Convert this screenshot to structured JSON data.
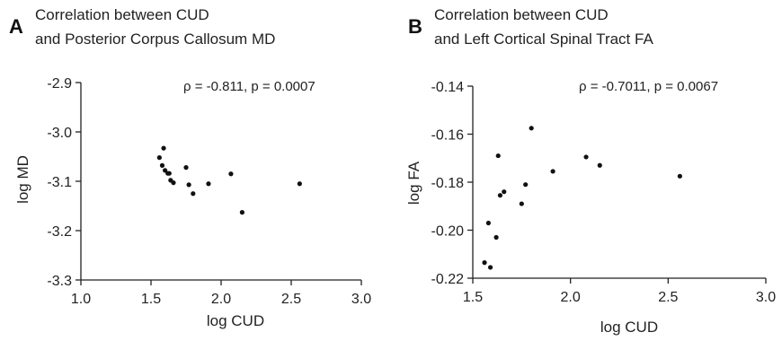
{
  "chart_data": [
    {
      "type": "scatter",
      "panel": "A",
      "title": [
        "Correlation between CUD",
        "and Posterior Corpus Callosum MD"
      ],
      "annotation": "ρ =  -0.811, p = 0.0007",
      "xlabel": "log CUD",
      "ylabel": "log MD",
      "xlim": [
        1.0,
        3.0
      ],
      "ylim": [
        -3.3,
        -2.9
      ],
      "xticks": [
        1.0,
        1.5,
        2.0,
        2.5,
        3.0
      ],
      "xtick_labels": [
        "1.0",
        "1.5",
        "2.0",
        "2.5",
        "3.0"
      ],
      "yticks": [
        -3.3,
        -3.2,
        -3.1,
        -3.0,
        -2.9
      ],
      "ytick_labels": [
        "-3.3",
        "-3.2",
        "-3.1",
        "-3.0",
        "-2.9"
      ],
      "grid": false,
      "points": [
        {
          "x": 1.56,
          "y": -3.052
        },
        {
          "x": 1.58,
          "y": -3.068
        },
        {
          "x": 1.59,
          "y": -3.033
        },
        {
          "x": 1.6,
          "y": -3.078
        },
        {
          "x": 1.62,
          "y": -3.084
        },
        {
          "x": 1.63,
          "y": -3.084
        },
        {
          "x": 1.64,
          "y": -3.098
        },
        {
          "x": 1.66,
          "y": -3.103
        },
        {
          "x": 1.75,
          "y": -3.072
        },
        {
          "x": 1.77,
          "y": -3.107
        },
        {
          "x": 1.8,
          "y": -3.125
        },
        {
          "x": 1.91,
          "y": -3.105
        },
        {
          "x": 2.07,
          "y": -3.085
        },
        {
          "x": 2.15,
          "y": -3.163
        },
        {
          "x": 2.56,
          "y": -3.105
        }
      ]
    },
    {
      "type": "scatter",
      "panel": "B",
      "title": [
        "Correlation between CUD",
        "and Left Cortical Spinal Tract FA"
      ],
      "annotation": "ρ = -0.7011, p = 0.0067",
      "xlabel": "log CUD",
      "ylabel": "log FA",
      "xlim": [
        1.5,
        3.0
      ],
      "ylim": [
        -0.22,
        -0.14
      ],
      "xticks": [
        1.5,
        2.0,
        2.5,
        3.0
      ],
      "xtick_labels": [
        "1.5",
        "2.0",
        "2.5",
        "3.0"
      ],
      "yticks": [
        -0.22,
        -0.2,
        -0.18,
        -0.16,
        -0.14
      ],
      "ytick_labels": [
        "-0.22",
        "-0.20",
        "-0.18",
        "-0.16",
        "-0.14"
      ],
      "grid": false,
      "points": [
        {
          "x": 1.56,
          "y": -0.2135
        },
        {
          "x": 1.58,
          "y": -0.197
        },
        {
          "x": 1.59,
          "y": -0.2155
        },
        {
          "x": 1.62,
          "y": -0.203
        },
        {
          "x": 1.63,
          "y": -0.169
        },
        {
          "x": 1.64,
          "y": -0.1855
        },
        {
          "x": 1.66,
          "y": -0.184
        },
        {
          "x": 1.75,
          "y": -0.189
        },
        {
          "x": 1.77,
          "y": -0.181
        },
        {
          "x": 1.8,
          "y": -0.1575
        },
        {
          "x": 1.91,
          "y": -0.1755
        },
        {
          "x": 2.08,
          "y": -0.1695
        },
        {
          "x": 2.15,
          "y": -0.173
        },
        {
          "x": 2.56,
          "y": -0.1775
        }
      ]
    }
  ]
}
